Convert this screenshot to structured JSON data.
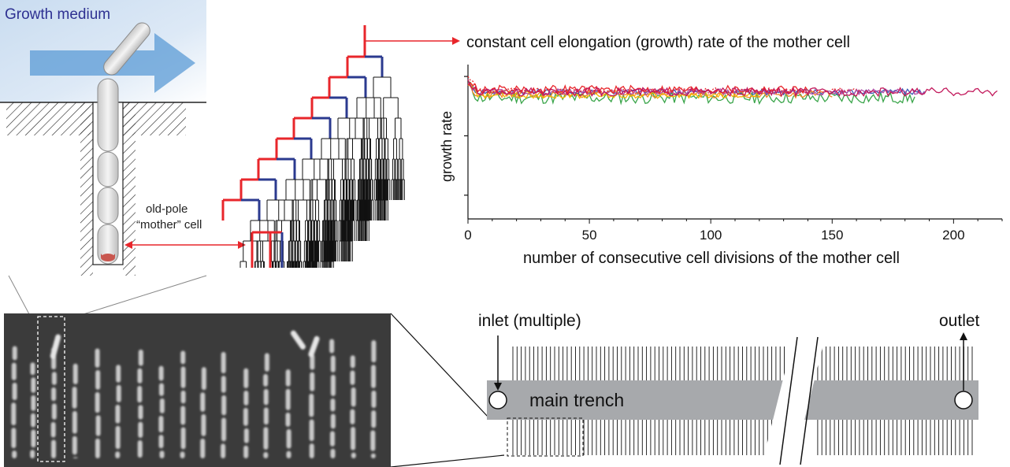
{
  "labels": {
    "growth_medium": "Growth medium",
    "old_pole_line1": "old-pole",
    "old_pole_line2": "“mother” cell",
    "constant_growth": "constant cell elongation (growth) rate of the mother cell",
    "inlet": "inlet (multiple)",
    "outlet": "outlet",
    "main_trench": "main trench"
  },
  "colors": {
    "mother_lineage": "#e8262b",
    "daughter_lineage": "#2b3a8f",
    "medium_blue": "#5b9bd5",
    "trench_gray": "#a7a9ac",
    "microscopy_bg": "#3b3b3b"
  },
  "chart_data": {
    "type": "line",
    "title": "",
    "xlabel": "number of consecutive cell divisions of the mother cell",
    "ylabel": "growth rate",
    "xlim": [
      0,
      220
    ],
    "xticks": [
      "0",
      "50",
      "100",
      "150",
      "200"
    ],
    "y_tick_values": [
      1.0,
      0.5,
      0.0
    ],
    "ylim": [
      -0.2,
      1.1
    ],
    "grid": false,
    "series": [
      {
        "color": "#3aa54a",
        "length": 184,
        "mean": 0.82,
        "noise": 0.05
      },
      {
        "color": "#3b5bb6",
        "length": 188,
        "mean": 0.87,
        "noise": 0.025
      },
      {
        "color": "#f08a24",
        "length": 150,
        "mean": 0.85,
        "noise": 0.03
      },
      {
        "color": "#f4b400",
        "length": 120,
        "mean": 0.84,
        "noise": 0.025
      },
      {
        "color": "#b14aa5",
        "length": 188,
        "mean": 0.87,
        "noise": 0.025
      },
      {
        "color": "#e8262b",
        "length": 140,
        "mean": 0.89,
        "noise": 0.035
      },
      {
        "color": "#e8262b",
        "length": 160,
        "mean": 0.88,
        "noise": 0.025,
        "dashed": true
      },
      {
        "color": "#c2185b",
        "length": 218,
        "mean": 0.87,
        "noise": 0.035
      }
    ]
  }
}
